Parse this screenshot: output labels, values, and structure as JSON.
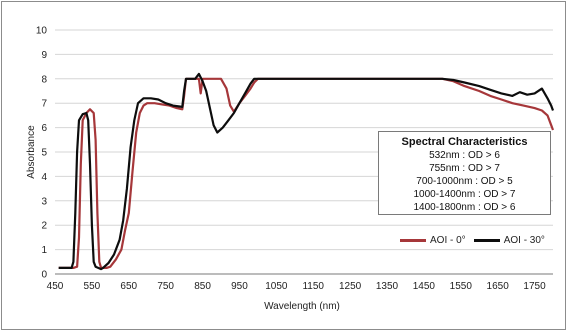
{
  "chart_data": {
    "type": "line",
    "title": "",
    "xlabel": "Wavelength (nm)",
    "ylabel": "Absorbance",
    "xlim": [
      450,
      1800
    ],
    "ylim": [
      0,
      10
    ],
    "x_ticks": [
      450,
      550,
      650,
      750,
      850,
      950,
      1050,
      1150,
      1250,
      1350,
      1450,
      1550,
      1650,
      1750
    ],
    "y_ticks": [
      0,
      1,
      2,
      3,
      4,
      5,
      6,
      7,
      8,
      9,
      10
    ],
    "grid": "horizontal",
    "legend_position": "bottom-right",
    "series": [
      {
        "name": "AOI - 0°",
        "color": "#a6373a",
        "points": [
          [
            460,
            0.25
          ],
          [
            500,
            0.25
          ],
          [
            510,
            0.3
          ],
          [
            515,
            1.5
          ],
          [
            520,
            4.5
          ],
          [
            525,
            6.3
          ],
          [
            535,
            6.6
          ],
          [
            545,
            6.75
          ],
          [
            555,
            6.6
          ],
          [
            560,
            5.5
          ],
          [
            565,
            2.5
          ],
          [
            570,
            0.5
          ],
          [
            575,
            0.25
          ],
          [
            590,
            0.25
          ],
          [
            600,
            0.3
          ],
          [
            615,
            0.6
          ],
          [
            630,
            1.0
          ],
          [
            640,
            1.8
          ],
          [
            650,
            2.5
          ],
          [
            660,
            4.2
          ],
          [
            670,
            5.8
          ],
          [
            680,
            6.6
          ],
          [
            690,
            6.9
          ],
          [
            700,
            7.0
          ],
          [
            720,
            7.0
          ],
          [
            740,
            6.95
          ],
          [
            760,
            6.9
          ],
          [
            780,
            6.8
          ],
          [
            795,
            6.75
          ],
          [
            800,
            7.3
          ],
          [
            805,
            8.0
          ],
          [
            830,
            8.0
          ],
          [
            840,
            8.0
          ],
          [
            845,
            7.4
          ],
          [
            850,
            8.0
          ],
          [
            900,
            8.0
          ],
          [
            915,
            7.6
          ],
          [
            925,
            6.9
          ],
          [
            935,
            6.65
          ],
          [
            950,
            7.0
          ],
          [
            965,
            7.3
          ],
          [
            980,
            7.6
          ],
          [
            990,
            7.85
          ],
          [
            1000,
            8.0
          ],
          [
            1500,
            8.0
          ],
          [
            1530,
            7.9
          ],
          [
            1560,
            7.7
          ],
          [
            1600,
            7.5
          ],
          [
            1630,
            7.3
          ],
          [
            1660,
            7.15
          ],
          [
            1690,
            7.0
          ],
          [
            1720,
            6.9
          ],
          [
            1750,
            6.8
          ],
          [
            1770,
            6.7
          ],
          [
            1785,
            6.5
          ],
          [
            1795,
            6.1
          ],
          [
            1800,
            5.9
          ]
        ]
      },
      {
        "name": "AOI - 30°",
        "color": "#0d0d0d",
        "points": [
          [
            460,
            0.25
          ],
          [
            495,
            0.25
          ],
          [
            500,
            0.5
          ],
          [
            505,
            2.5
          ],
          [
            510,
            5.0
          ],
          [
            515,
            6.3
          ],
          [
            525,
            6.55
          ],
          [
            535,
            6.6
          ],
          [
            540,
            6.3
          ],
          [
            545,
            4.5
          ],
          [
            550,
            2.0
          ],
          [
            555,
            0.5
          ],
          [
            560,
            0.3
          ],
          [
            575,
            0.2
          ],
          [
            580,
            0.25
          ],
          [
            595,
            0.45
          ],
          [
            610,
            0.8
          ],
          [
            625,
            1.4
          ],
          [
            635,
            2.2
          ],
          [
            645,
            3.5
          ],
          [
            655,
            5.2
          ],
          [
            665,
            6.3
          ],
          [
            675,
            7.0
          ],
          [
            690,
            7.2
          ],
          [
            710,
            7.2
          ],
          [
            730,
            7.15
          ],
          [
            750,
            7.0
          ],
          [
            770,
            6.9
          ],
          [
            795,
            6.85
          ],
          [
            800,
            7.5
          ],
          [
            805,
            8.0
          ],
          [
            830,
            8.0
          ],
          [
            840,
            8.2
          ],
          [
            850,
            7.9
          ],
          [
            860,
            7.5
          ],
          [
            870,
            6.8
          ],
          [
            880,
            6.1
          ],
          [
            890,
            5.8
          ],
          [
            905,
            6.0
          ],
          [
            920,
            6.3
          ],
          [
            935,
            6.6
          ],
          [
            950,
            7.0
          ],
          [
            965,
            7.4
          ],
          [
            980,
            7.8
          ],
          [
            990,
            8.0
          ],
          [
            1500,
            8.0
          ],
          [
            1530,
            7.95
          ],
          [
            1560,
            7.85
          ],
          [
            1600,
            7.7
          ],
          [
            1630,
            7.55
          ],
          [
            1660,
            7.4
          ],
          [
            1690,
            7.3
          ],
          [
            1710,
            7.45
          ],
          [
            1730,
            7.35
          ],
          [
            1750,
            7.4
          ],
          [
            1770,
            7.6
          ],
          [
            1785,
            7.2
          ],
          [
            1795,
            6.9
          ],
          [
            1800,
            6.7
          ]
        ]
      }
    ]
  },
  "spec_box": {
    "title": "Spectral Characteristics",
    "lines": [
      "532nm : OD > 6",
      "755nm : OD > 7",
      "700-1000nm : OD > 5",
      "1000-1400nm : OD > 7",
      "1400-1800nm : OD > 6"
    ]
  },
  "legend": {
    "items": [
      {
        "label": "AOI - 0°",
        "color": "#a6373a"
      },
      {
        "label": "AOI - 30°",
        "color": "#0d0d0d"
      }
    ]
  }
}
